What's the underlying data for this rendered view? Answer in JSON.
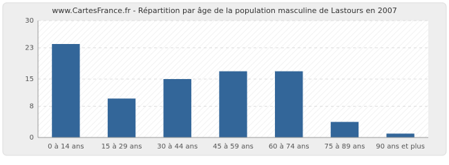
{
  "chart_data": {
    "type": "bar",
    "title": "www.CartesFrance.fr - Répartition par âge de la population masculine de Lastours en 2007",
    "categories": [
      "0 à 14 ans",
      "15 à 29 ans",
      "30 à 44 ans",
      "45 à 59 ans",
      "60 à 74 ans",
      "75 à 89 ans",
      "90 ans et plus"
    ],
    "values": [
      24,
      10,
      15,
      17,
      17,
      4,
      1
    ],
    "color": "#336699",
    "ylim": [
      0,
      30
    ],
    "yticks": [
      0,
      8,
      15,
      23,
      30
    ],
    "grid": true
  }
}
